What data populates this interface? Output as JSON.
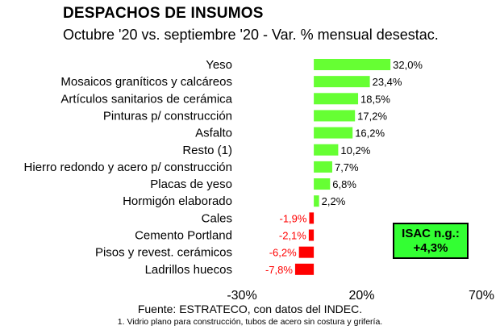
{
  "chart_data": {
    "type": "bar",
    "orientation": "horizontal",
    "title": "DESPACHOS DE INSUMOS",
    "subtitle": "Octubre '20 vs. septiembre '20 - Var. % mensual desestac.",
    "categories": [
      "Yeso",
      "Mosaicos graníticos y calcáreos",
      "Artículos sanitarios de cerámica",
      "Pinturas p/ construcción",
      "Asfalto",
      "Resto (1)",
      "Hierro redondo y acero p/ construcción",
      "Placas de yeso",
      "Hormigón elaborado",
      "Cales",
      "Cemento Portland",
      "Pisos y revest. cerámicos",
      "Ladrillos huecos"
    ],
    "values": [
      32.0,
      23.4,
      18.5,
      17.2,
      16.2,
      10.2,
      7.7,
      6.8,
      2.2,
      -1.9,
      -2.1,
      -6.2,
      -7.8
    ],
    "value_labels": [
      "32,0%",
      "23,4%",
      "18,5%",
      "17,2%",
      "16,2%",
      "10,2%",
      "7,7%",
      "6,8%",
      "2,2%",
      "-1,9%",
      "-2,1%",
      "-6,2%",
      "-7,8%"
    ],
    "xlim": [
      -30,
      70
    ],
    "xticks": [
      -30,
      20,
      70
    ],
    "xtick_labels": [
      "-30%",
      "20%",
      "70%"
    ],
    "grid": false,
    "colors": {
      "positive": "#66ff33",
      "negative": "#ff0000",
      "negative_label": "#ff0000"
    }
  },
  "annotation": {
    "line1": "ISAC n.g.:",
    "line2": "+4,3%",
    "color": "#33ff33"
  },
  "source": "Fuente: ESTRATECO, con datos del INDEC.",
  "footnote": "1. Vidrio plano para construcción, tubos de acero sin costura y grifería."
}
